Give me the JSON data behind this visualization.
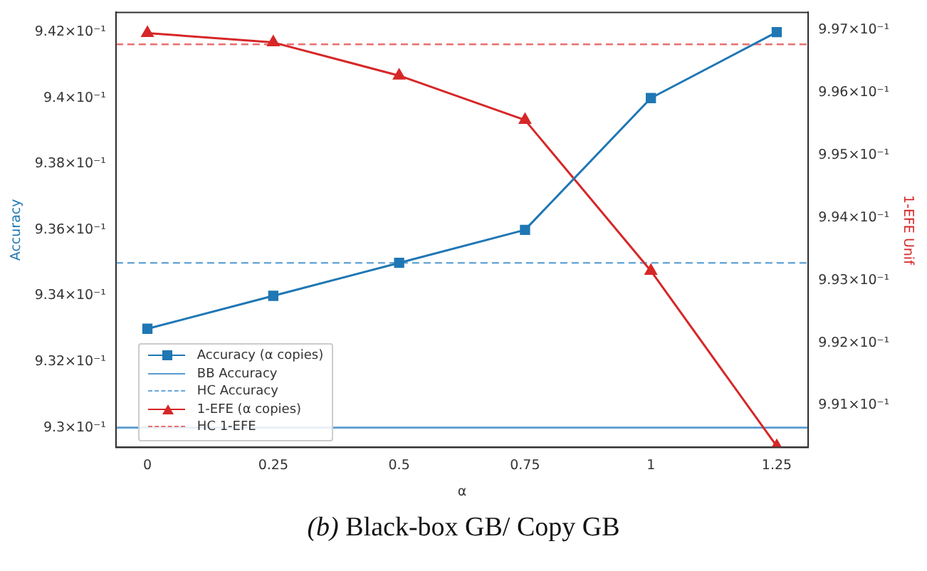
{
  "chart_data": {
    "type": "line",
    "xlabel": "α",
    "ylabel": "Accuracy",
    "y2label": "1-EFE Unif",
    "x": [
      0,
      0.25,
      0.5,
      0.75,
      1,
      1.25
    ],
    "xlim": [
      -0.0625,
      1.3125
    ],
    "xticks": [
      0,
      0.25,
      0.5,
      0.75,
      1,
      1.25
    ],
    "ylim": [
      0.9294,
      0.9426
    ],
    "yticks": [
      {
        "value": 0.93,
        "label": "9.3×10⁻¹"
      },
      {
        "value": 0.932,
        "label": "9.32×10⁻¹"
      },
      {
        "value": 0.934,
        "label": "9.34×10⁻¹"
      },
      {
        "value": 0.936,
        "label": "9.36×10⁻¹"
      },
      {
        "value": 0.938,
        "label": "9.38×10⁻¹"
      },
      {
        "value": 0.94,
        "label": "9.4×10⁻¹"
      },
      {
        "value": 0.942,
        "label": "9.42×10⁻¹"
      }
    ],
    "y2lim": [
      0.99033,
      0.99728
    ],
    "y2ticks": [
      {
        "value": 0.991,
        "label": "9.91×10⁻¹"
      },
      {
        "value": 0.992,
        "label": "9.92×10⁻¹"
      },
      {
        "value": 0.993,
        "label": "9.93×10⁻¹"
      },
      {
        "value": 0.994,
        "label": "9.94×10⁻¹"
      },
      {
        "value": 0.995,
        "label": "9.95×10⁻¹"
      },
      {
        "value": 0.996,
        "label": "9.96×10⁻¹"
      },
      {
        "value": 0.997,
        "label": "9.97×10⁻¹"
      }
    ],
    "series": [
      {
        "name": "Accuracy (α copies)",
        "color": "#1f77b4",
        "marker": "square",
        "axis": "y",
        "values": [
          0.933,
          0.934,
          0.935,
          0.936,
          0.94,
          0.942
        ]
      },
      {
        "name": "1-EFE (α copies)",
        "color": "#d62728",
        "marker": "triangle",
        "axis": "y2",
        "values": [
          0.99695,
          0.9968,
          0.99627,
          0.99556,
          0.99315,
          0.99035
        ]
      }
    ],
    "ref_lines": [
      {
        "axis": "y",
        "value": 0.93,
        "label": "BB Accuracy",
        "color": "#5a9bd0",
        "line_style": "solid"
      },
      {
        "axis": "y",
        "value": 0.935,
        "label": "HC Accuracy",
        "color": "#6aa8d8",
        "line_style": "dashed"
      },
      {
        "axis": "y2",
        "value": 0.99677,
        "label": "HC 1-EFE",
        "color": "#e87070",
        "line_style": "dashed"
      }
    ],
    "legend": "bottom left",
    "grid": false,
    "annotations": [
      "(b) Black-box GB/ Copy GB"
    ]
  }
}
